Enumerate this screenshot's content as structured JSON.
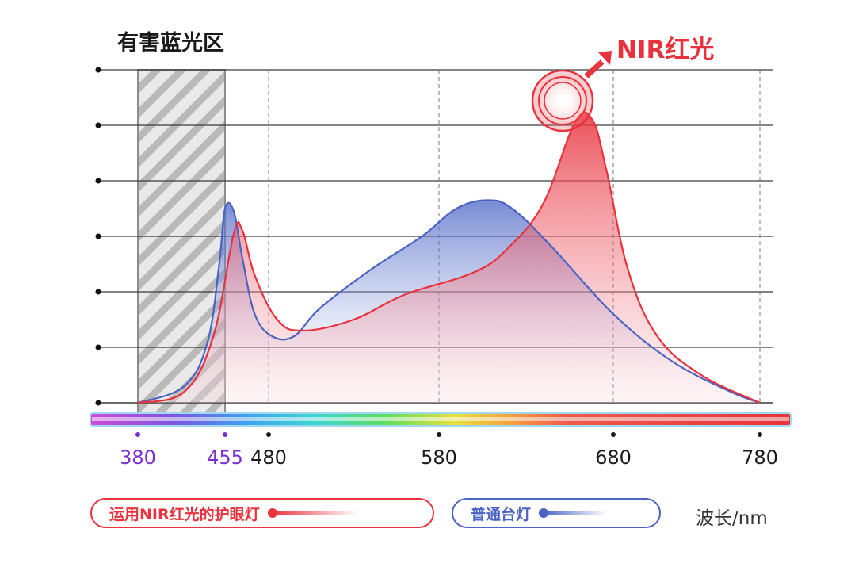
{
  "colors": {
    "nir": "#e8323c",
    "normal": "#4a63c4",
    "purple_tick": "#7b2fd0",
    "grid": "#333333",
    "hazard_hatch": "#9a9a9a"
  },
  "chart_data": {
    "type": "area",
    "title": "有害蓝光区",
    "annotation": "NIR红光",
    "unit_label": "波长/nm",
    "x_ticks": [
      {
        "value": 380,
        "label": "380",
        "color": "purple"
      },
      {
        "value": 455,
        "label": "455",
        "color": "purple"
      },
      {
        "value": 480,
        "label": "480",
        "color": "black"
      },
      {
        "value": 580,
        "label": "580",
        "color": "black"
      },
      {
        "value": 680,
        "label": "680",
        "color": "black"
      },
      {
        "value": 780,
        "label": "780",
        "color": "black"
      }
    ],
    "xlim": [
      380,
      780
    ],
    "ylim": [
      0,
      6
    ],
    "y_gridlines": 6,
    "y_tick_labels": false,
    "hazard_band": [
      380,
      455
    ],
    "series": [
      {
        "name": "运用NIR红光的护眼灯",
        "color": "#e8323c",
        "points": [
          [
            380,
            0.0
          ],
          [
            420,
            0.2
          ],
          [
            445,
            1.2
          ],
          [
            460,
            3.05
          ],
          [
            465,
            3.1
          ],
          [
            472,
            2.3
          ],
          [
            485,
            1.5
          ],
          [
            500,
            1.3
          ],
          [
            530,
            1.5
          ],
          [
            560,
            1.95
          ],
          [
            600,
            2.35
          ],
          [
            620,
            2.8
          ],
          [
            640,
            3.6
          ],
          [
            658,
            5.05
          ],
          [
            668,
            5.1
          ],
          [
            676,
            4.2
          ],
          [
            690,
            2.4
          ],
          [
            710,
            1.2
          ],
          [
            740,
            0.5
          ],
          [
            780,
            0.0
          ]
        ]
      },
      {
        "name": "普通台灯",
        "color": "#4a63c4",
        "points": [
          [
            380,
            0.0
          ],
          [
            420,
            0.3
          ],
          [
            440,
            1.1
          ],
          [
            450,
            2.5
          ],
          [
            455,
            3.5
          ],
          [
            460,
            3.45
          ],
          [
            465,
            2.6
          ],
          [
            472,
            1.6
          ],
          [
            482,
            1.2
          ],
          [
            495,
            1.2
          ],
          [
            510,
            1.7
          ],
          [
            540,
            2.4
          ],
          [
            570,
            3.0
          ],
          [
            590,
            3.5
          ],
          [
            608,
            3.65
          ],
          [
            622,
            3.5
          ],
          [
            645,
            2.8
          ],
          [
            680,
            1.6
          ],
          [
            720,
            0.75
          ],
          [
            760,
            0.2
          ],
          [
            780,
            0.0
          ]
        ]
      }
    ]
  },
  "legend": {
    "nir_label": "运用NIR红光的护眼灯",
    "normal_label": "普通台灯"
  }
}
